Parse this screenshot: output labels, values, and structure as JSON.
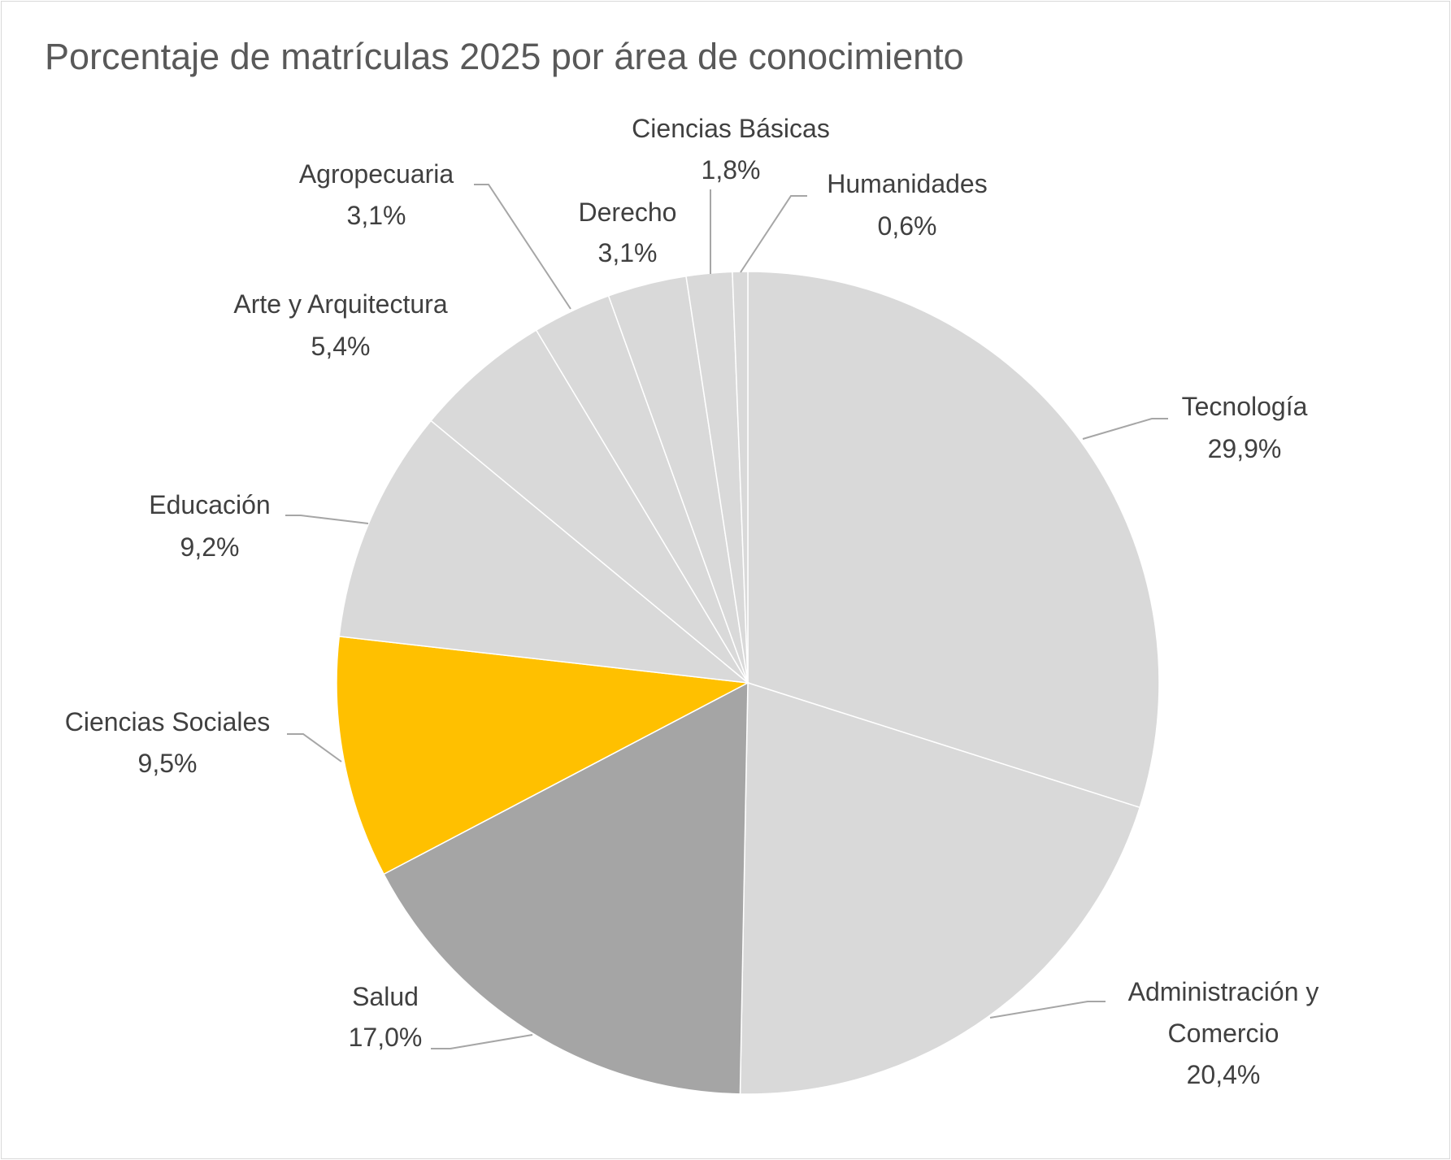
{
  "chart_data": {
    "type": "pie",
    "title": "Porcentaje de matrículas 2025 por área de conocimiento",
    "start_angle": "top, clockwise",
    "slices": [
      {
        "name": "Tecnología",
        "value": 29.9,
        "label": "29,9%",
        "color": "#D9D9D9"
      },
      {
        "name": "Administración y Comercio",
        "name_lines": [
          "Administración y",
          "Comercio"
        ],
        "value": 20.4,
        "label": "20,4%",
        "color": "#D9D9D9"
      },
      {
        "name": "Salud",
        "value": 17.0,
        "label": "17,0%",
        "color": "#A5A5A5"
      },
      {
        "name": "Ciencias Sociales",
        "value": 9.5,
        "label": "9,5%",
        "color": "#FFC000"
      },
      {
        "name": "Educación",
        "value": 9.2,
        "label": "9,2%",
        "color": "#D9D9D9"
      },
      {
        "name": "Arte y Arquitectura",
        "value": 5.4,
        "label": "5,4%",
        "color": "#D9D9D9"
      },
      {
        "name": "Agropecuaria",
        "value": 3.1,
        "label": "3,1%",
        "color": "#D9D9D9"
      },
      {
        "name": "Derecho",
        "value": 3.1,
        "label": "3,1%",
        "color": "#D9D9D9"
      },
      {
        "name": "Ciencias Básicas",
        "value": 1.8,
        "label": "1,8%",
        "color": "#D9D9D9"
      },
      {
        "name": "Humanidades",
        "value": 0.6,
        "label": "0,6%",
        "color": "#D9D9D9"
      }
    ]
  }
}
